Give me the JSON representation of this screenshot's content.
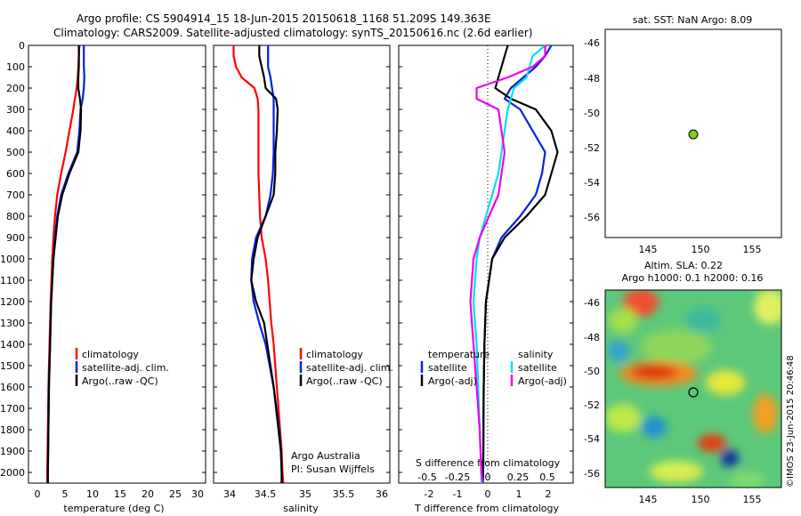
{
  "header": {
    "line1": "Argo profile: CS 5904914_15 18-Jun-2015 20150618_1168 51.209S 149.363E",
    "line2": "Climatology: CARS2009. Satellite-adjusted climatology: synTS_20150616.nc (2.6d earlier)"
  },
  "colors": {
    "red": "#ff0000",
    "blue": "#0022dd",
    "black": "#000000",
    "cyan": "#00e0e8",
    "magenta": "#ee00ee",
    "marker": "#7cd11a"
  },
  "depth_ticks": [
    0,
    100,
    200,
    300,
    400,
    500,
    600,
    700,
    800,
    900,
    1000,
    1100,
    1200,
    1300,
    1400,
    1500,
    1600,
    1700,
    1800,
    1900,
    2000
  ],
  "temperature_panel": {
    "xlabel": "temperature (deg C)",
    "xticks": [
      0,
      5,
      10,
      15,
      20,
      25,
      30
    ],
    "legend": [
      "climatology",
      "satellite-adj. clim.",
      "Argo(..raw -QC)"
    ]
  },
  "salinity_panel": {
    "xlabel": "salinity",
    "xticks": [
      "34",
      "34.5",
      "35",
      "35.5",
      "36"
    ],
    "legend": [
      "climatology",
      "satellite-adj. clim.",
      "Argo(..raw -QC)"
    ],
    "note1": "Argo Australia",
    "note2": "PI: Susan Wijffels"
  },
  "difference_panel": {
    "xlabel": "T difference from climatology",
    "top_label": "S difference from climatology",
    "xticks": [
      "-2",
      "-1",
      "0",
      "1",
      "2"
    ],
    "sticks": [
      "-0.5",
      "-0.25",
      "0",
      "0.25",
      "0.5"
    ],
    "legend_head_t": "temperature",
    "legend_head_s": "salinity",
    "legend_t": [
      "satellite",
      "Argo(-adj)"
    ],
    "legend_s": [
      "satellite",
      "Argo(-adj)"
    ]
  },
  "sst_map": {
    "title": "sat. SST: NaN Argo: 8.09",
    "yticks": [
      "-46",
      "-48",
      "-50",
      "-52",
      "-54",
      "-56"
    ],
    "xticks": [
      "145",
      "150",
      "155"
    ]
  },
  "sla_map": {
    "title1": "Altim. SLA: 0.22",
    "title2": "Argo h1000: 0.1 h2000: 0.16",
    "yticks": [
      "-46",
      "-48",
      "-50",
      "-52",
      "-54",
      "-56"
    ],
    "xticks": [
      "145",
      "150",
      "155"
    ],
    "credit": "©IMOS 23-Jun-2015 20:46:48"
  },
  "chart_data": [
    {
      "type": "line",
      "title": "temperature",
      "xlabel": "temperature (deg C)",
      "ylabel": "",
      "xlim": [
        -1,
        31
      ],
      "ylim": [
        2050,
        0
      ],
      "depth": [
        0,
        50,
        100,
        150,
        200,
        250,
        300,
        400,
        500,
        600,
        700,
        800,
        900,
        1000,
        1200,
        1400,
        1600,
        1800,
        2000,
        2050
      ],
      "series": [
        {
          "name": "climatology",
          "color": "red",
          "values": [
            8.2,
            8.1,
            8.0,
            7.9,
            7.7,
            7.4,
            7.1,
            6.4,
            5.7,
            4.9,
            4.2,
            3.8,
            3.5,
            3.3,
            3.0,
            2.8,
            2.6,
            2.5,
            2.4,
            2.4
          ]
        },
        {
          "name": "satellite-adj. clim.",
          "color": "blue",
          "values": [
            9.0,
            9.0,
            9.0,
            9.1,
            9.0,
            8.8,
            8.4,
            8.2,
            7.8,
            6.2,
            4.9,
            4.2,
            3.8,
            3.5,
            3.1,
            2.9,
            2.7,
            2.6,
            2.5,
            2.5
          ]
        },
        {
          "name": "Argo(..raw -QC)",
          "color": "black",
          "values": [
            8.1,
            8.1,
            8.1,
            8.0,
            8.0,
            8.3,
            8.5,
            8.4,
            8.0,
            6.4,
            5.1,
            4.3,
            3.9,
            3.5,
            3.1,
            2.9,
            2.7,
            2.6,
            2.5,
            2.5
          ]
        }
      ]
    },
    {
      "type": "line",
      "title": "salinity",
      "xlabel": "salinity",
      "ylabel": "",
      "xlim": [
        33.85,
        36.05
      ],
      "ylim": [
        2050,
        0
      ],
      "depth": [
        0,
        50,
        100,
        150,
        200,
        250,
        300,
        400,
        500,
        600,
        700,
        800,
        900,
        1000,
        1100,
        1200,
        1300,
        1400,
        1600,
        1800,
        1900,
        2000,
        2050
      ],
      "series": [
        {
          "name": "climatology",
          "color": "red",
          "values": [
            34.1,
            34.1,
            34.13,
            34.2,
            34.36,
            34.4,
            34.41,
            34.41,
            34.41,
            34.41,
            34.42,
            34.43,
            34.45,
            34.5,
            34.53,
            34.55,
            34.57,
            34.6,
            34.64,
            34.68,
            34.7,
            34.71,
            34.72
          ]
        },
        {
          "name": "satellite-adj. clim.",
          "color": "blue",
          "values": [
            34.53,
            34.53,
            34.53,
            34.56,
            34.58,
            34.6,
            34.6,
            34.6,
            34.6,
            34.59,
            34.56,
            34.5,
            34.38,
            34.33,
            34.32,
            34.35,
            34.42,
            34.5,
            34.6,
            34.67,
            34.69,
            34.7,
            34.7
          ]
        },
        {
          "name": "Argo(..raw -QC)",
          "color": "black",
          "values": [
            34.42,
            34.42,
            34.45,
            34.48,
            34.5,
            34.63,
            34.65,
            34.64,
            34.62,
            34.62,
            34.6,
            34.5,
            34.4,
            34.35,
            34.32,
            34.38,
            34.48,
            34.52,
            34.6,
            34.66,
            34.69,
            34.7,
            34.7
          ]
        }
      ]
    },
    {
      "type": "line",
      "title": "difference from climatology",
      "xlabel": "T difference from climatology",
      "ylabel": "",
      "xlim": [
        -2.7,
        2.9
      ],
      "ylim": [
        2050,
        0
      ],
      "depth": [
        0,
        50,
        100,
        150,
        200,
        250,
        300,
        400,
        500,
        600,
        700,
        800,
        900,
        1000,
        1200,
        1400,
        1600,
        1800,
        2000,
        2050
      ],
      "series": [
        {
          "name": "temperature satellite",
          "color": "blue",
          "values": [
            2.2,
            2.0,
            1.7,
            1.3,
            0.9,
            0.7,
            1.2,
            1.6,
            2.0,
            1.9,
            1.7,
            1.2,
            0.6,
            0.3,
            0.1,
            0.05,
            0.03,
            0.02,
            0.01,
            0.0
          ]
        },
        {
          "name": "temperature Argo(-adj)",
          "color": "black",
          "values": [
            0.8,
            0.7,
            0.6,
            0.5,
            0.4,
            0.9,
            1.7,
            2.2,
            2.4,
            2.2,
            2.0,
            1.4,
            0.7,
            0.3,
            0.1,
            0.05,
            0.03,
            0.02,
            0.01,
            0.0
          ]
        },
        {
          "name": "salinity satellite",
          "color": "cyan",
          "values": [
            2.0,
            1.6,
            1.5,
            1.4,
            1.0,
            0.9,
            0.8,
            0.7,
            0.6,
            0.5,
            0.3,
            0.1,
            -0.1,
            -0.2,
            -0.3,
            -0.2,
            -0.15,
            -0.1,
            -0.05,
            -0.05
          ]
        },
        {
          "name": "salinity Argo(-adj)",
          "color": "magenta",
          "values": [
            2.0,
            2.0,
            1.6,
            0.8,
            -0.2,
            -0.2,
            0.5,
            0.6,
            0.7,
            0.6,
            0.5,
            0.2,
            -0.1,
            -0.3,
            -0.4,
            -0.3,
            -0.2,
            -0.1,
            -0.05,
            0.0
          ]
        }
      ]
    }
  ]
}
